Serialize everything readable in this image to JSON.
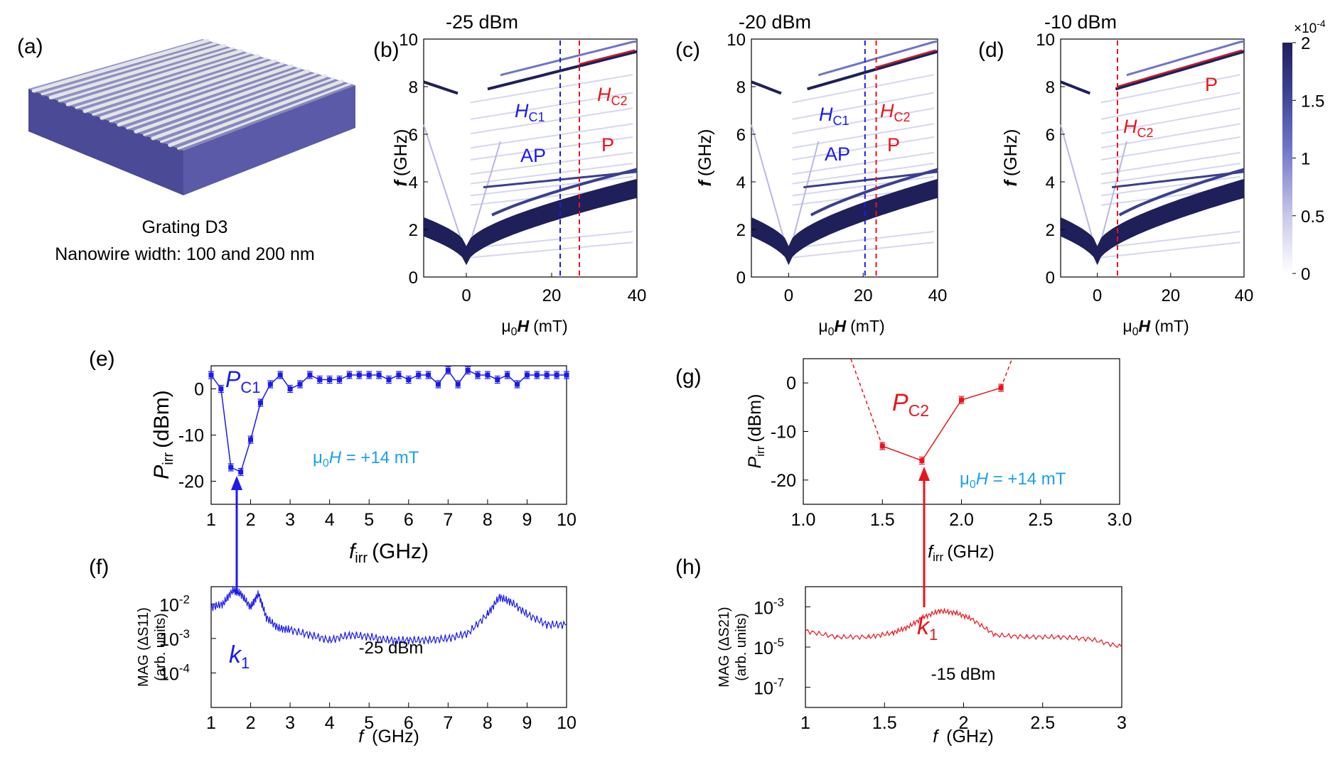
{
  "colors": {
    "blue": "#1a1aee",
    "red": "#e8141b",
    "cyan": "#1aa0e8",
    "navy": "#1f1f5a",
    "slab": "#5a5aa8"
  },
  "panel_a": {
    "label": "(a)",
    "caption_line1": "Grating D3",
    "caption_line2": "Nanowire width: 100 and 200 nm"
  },
  "colorbar": {
    "exponent_prefix": "×10",
    "exponent": "-4",
    "ticks": [
      "0",
      "0.5",
      "1",
      "1.5",
      "2"
    ],
    "range": [
      0,
      2
    ]
  },
  "chart_data": [
    {
      "id": "b",
      "type": "heatmap",
      "label": "(b)",
      "title": "-25 dBm",
      "ylabel_f": "f",
      "ylabel_unit": "(GHz)",
      "xlabel_mu": "μ",
      "xlabel_zero": "0",
      "xlabel_H": "H",
      "xlabel_unit": "(mT)",
      "xlim": [
        -10,
        40
      ],
      "ylim": [
        0,
        10
      ],
      "xticks": [
        "0",
        "20",
        "40"
      ],
      "yticks": [
        "0",
        "2",
        "4",
        "6",
        "8",
        "10"
      ],
      "hc1": 22,
      "hc2": 26.5,
      "annotations": {
        "hc1_main": "H",
        "hc1_sub": "C1",
        "hc2_main": "H",
        "hc2_sub": "C2",
        "ap": "AP",
        "p": "P"
      }
    },
    {
      "id": "c",
      "type": "heatmap",
      "label": "(c)",
      "title": "-20 dBm",
      "ylabel_f": "f",
      "ylabel_unit": "(GHz)",
      "xlabel_mu": "μ",
      "xlabel_zero": "0",
      "xlabel_H": "H",
      "xlabel_unit": "(mT)",
      "xlim": [
        -10,
        40
      ],
      "ylim": [
        0,
        10
      ],
      "xticks": [
        "0",
        "20",
        "40"
      ],
      "yticks": [
        "0",
        "2",
        "4",
        "6",
        "8",
        "10"
      ],
      "hc1": 20.5,
      "hc2": 23.5,
      "annotations": {
        "hc1_main": "H",
        "hc1_sub": "C1",
        "hc2_main": "H",
        "hc2_sub": "C2",
        "ap": "AP",
        "p": "P"
      }
    },
    {
      "id": "d",
      "type": "heatmap",
      "label": "(d)",
      "title": "-10 dBm",
      "ylabel_f": "f",
      "ylabel_unit": "(GHz)",
      "xlabel_mu": "μ",
      "xlabel_zero": "0",
      "xlabel_H": "H",
      "xlabel_unit": "(mT)",
      "xlim": [
        -10,
        40
      ],
      "ylim": [
        0,
        10
      ],
      "xticks": [
        "0",
        "20",
        "40"
      ],
      "yticks": [
        "0",
        "2",
        "4",
        "6",
        "8",
        "10"
      ],
      "hc2": 5.5,
      "annotations": {
        "hc2_main": "H",
        "hc2_sub": "C2",
        "p": "P"
      }
    },
    {
      "id": "e",
      "type": "line",
      "label": "(e)",
      "ylabel_main": "P",
      "ylabel_sub": "irr",
      "ylabel_unit": "(dBm)",
      "xlabel_main": "f",
      "xlabel_sub": "irr",
      "xlabel_unit": "(GHz)",
      "xlim": [
        1,
        10
      ],
      "ylim": [
        -25,
        5
      ],
      "xticks": [
        "1",
        "2",
        "3",
        "4",
        "5",
        "6",
        "7",
        "8",
        "9",
        "10"
      ],
      "yticks": [
        "0",
        "-10",
        "-20"
      ],
      "annotation_main": "P",
      "annotation_sub": "C1",
      "field_mu": "μ",
      "field_zero": "0",
      "field_H": "H",
      "field_value": " = +14 mT",
      "x": [
        1.0,
        1.25,
        1.5,
        1.75,
        2.0,
        2.25,
        2.5,
        2.75,
        3.0,
        3.25,
        3.5,
        3.75,
        4.0,
        4.25,
        4.5,
        4.75,
        5.0,
        5.25,
        5.5,
        5.75,
        6.0,
        6.25,
        6.5,
        6.75,
        7.0,
        7.25,
        7.5,
        7.75,
        8.0,
        8.25,
        8.5,
        8.75,
        9.0,
        9.25,
        9.5,
        9.75,
        10.0
      ],
      "y": [
        3,
        0,
        -17,
        -18,
        -11,
        -3,
        1,
        3,
        0,
        1,
        3,
        2,
        2,
        2,
        3,
        3,
        3,
        3,
        2,
        3,
        2,
        3,
        3,
        1,
        4,
        1,
        4,
        3,
        3,
        2,
        3,
        1,
        3,
        3,
        3,
        3,
        3
      ]
    },
    {
      "id": "f",
      "type": "line",
      "label": "(f)",
      "ylabel_line1": "MAG (ΔS11)",
      "ylabel_line2": "(arb. units)",
      "xlabel_main": "f",
      "xlabel_unit": "(GHz)",
      "xlim": [
        1,
        10
      ],
      "ylim_log10": [
        -5,
        -1.5
      ],
      "xticks": [
        "1",
        "2",
        "3",
        "4",
        "5",
        "6",
        "7",
        "8",
        "9",
        "10"
      ],
      "ytick_exponents": [
        "-2",
        "-3",
        "-4"
      ],
      "ytick_base": "10",
      "annotation_main": "k",
      "annotation_sub": "1",
      "power": "-25 dBm",
      "x": [
        1.0,
        1.3,
        1.55,
        1.75,
        2.0,
        2.2,
        2.4,
        2.7,
        3.0,
        3.5,
        4.0,
        4.5,
        5.0,
        5.5,
        6.0,
        6.5,
        7.0,
        7.5,
        8.0,
        8.3,
        8.6,
        9.0,
        9.5,
        10.0
      ],
      "log10_y": [
        -2.1,
        -2.0,
        -1.6,
        -1.7,
        -2.1,
        -1.7,
        -2.4,
        -2.7,
        -2.75,
        -2.9,
        -3.05,
        -2.9,
        -2.95,
        -3.05,
        -3.05,
        -3.05,
        -3.0,
        -2.85,
        -2.3,
        -1.8,
        -1.95,
        -2.3,
        -2.6,
        -2.6
      ]
    },
    {
      "id": "g",
      "type": "line",
      "label": "(g)",
      "ylabel_main": "P",
      "ylabel_sub": "irr",
      "ylabel_unit": "(dBm)",
      "xlabel_main": "f",
      "xlabel_sub": "irr",
      "xlabel_unit": "(GHz)",
      "xlim": [
        1.0,
        3.0
      ],
      "ylim": [
        -25,
        5
      ],
      "xticks": [
        "1.0",
        "1.5",
        "2.0",
        "2.5",
        "3.0"
      ],
      "yticks": [
        "0",
        "-10",
        "-20"
      ],
      "annotation_main": "P",
      "annotation_sub": "C2",
      "field_mu": "μ",
      "field_zero": "0",
      "field_H": "H",
      "field_value": " = +14 mT",
      "x": [
        1.5,
        1.75,
        2.0,
        2.25
      ],
      "y": [
        -13,
        -16,
        -3.5,
        -1
      ],
      "dashed_left_x": [
        1.3,
        1.5
      ],
      "dashed_left_y": [
        5,
        -13
      ],
      "dashed_right_x": [
        2.25,
        2.32
      ],
      "dashed_right_y": [
        -1,
        5
      ]
    },
    {
      "id": "h",
      "type": "line",
      "label": "(h)",
      "ylabel_line1": "MAG (ΔS21)",
      "ylabel_line2": "(arb. units)",
      "xlabel_main": "f",
      "xlabel_unit": "(GHz)",
      "xlim": [
        1,
        3
      ],
      "ylim_log10": [
        -8,
        -2
      ],
      "xticks": [
        "1",
        "1.5",
        "2",
        "2.5",
        "3"
      ],
      "ytick_exponents": [
        "-3",
        "-5",
        "-7"
      ],
      "ytick_base": "10",
      "annotation_main": "k",
      "annotation_sub": "1",
      "power": "-15 dBm",
      "x": [
        1.0,
        1.2,
        1.4,
        1.55,
        1.65,
        1.75,
        1.85,
        1.95,
        2.05,
        2.2,
        2.4,
        2.6,
        2.8,
        3.0
      ],
      "log10_y": [
        -4.2,
        -4.5,
        -4.5,
        -4.3,
        -4.0,
        -3.5,
        -3.2,
        -3.3,
        -3.6,
        -4.4,
        -4.5,
        -4.5,
        -4.6,
        -5.0
      ]
    }
  ]
}
